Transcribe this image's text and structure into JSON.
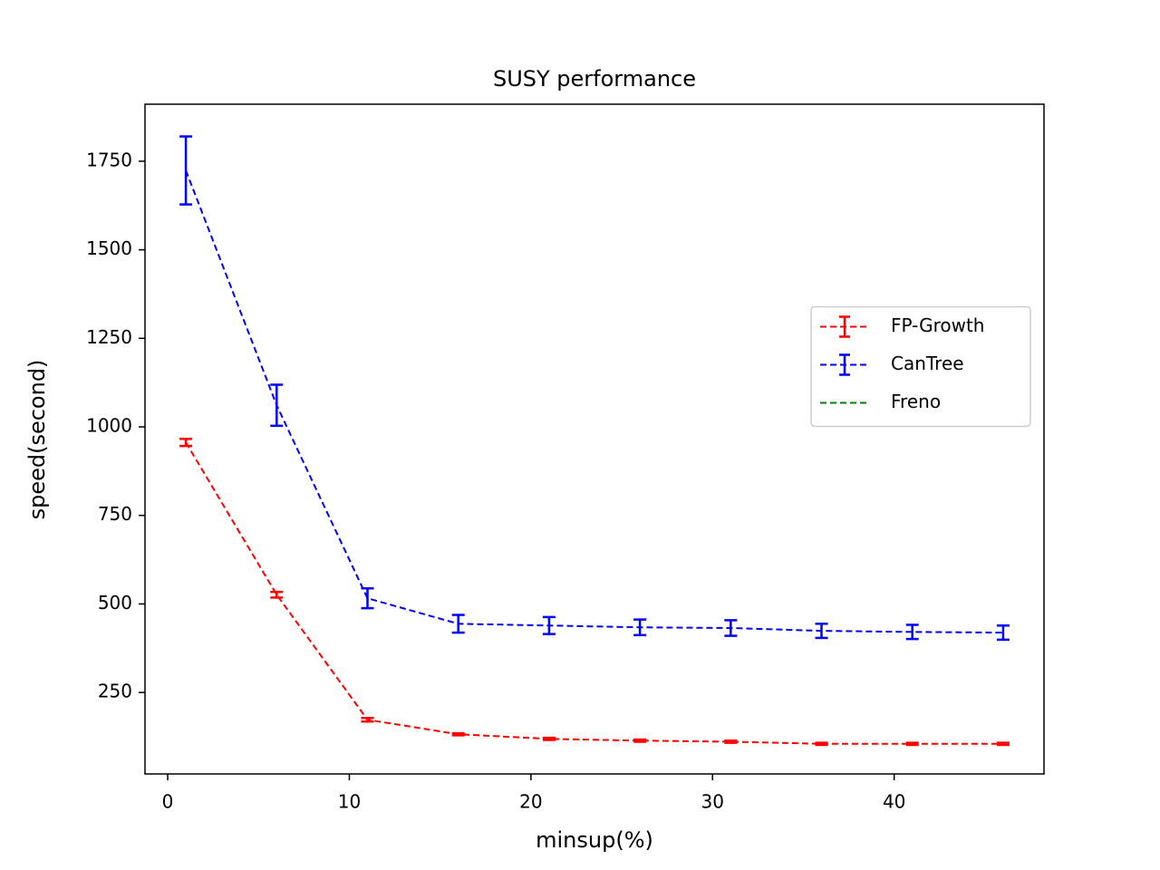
{
  "chart_data": {
    "type": "line",
    "title": "SUSY performance",
    "x_label": "minsup(%)",
    "y_label": "speed(second)",
    "x": [
      1,
      6,
      11,
      16,
      21,
      26,
      31,
      36,
      41,
      46
    ],
    "series": [
      {
        "name": "FP-Growth",
        "color": "#ff0000",
        "linestyle": "dashed",
        "values": [
          956,
          526,
          173,
          132,
          119,
          114,
          111,
          105,
          105,
          105
        ],
        "errors": [
          10,
          8,
          5,
          3,
          3,
          3,
          3,
          3,
          3,
          3
        ]
      },
      {
        "name": "CanTree",
        "color": "#0000ff",
        "linestyle": "dashed",
        "values": [
          1724,
          1061,
          516,
          444,
          439,
          434,
          432,
          424,
          421,
          419
        ],
        "errors": [
          96,
          58,
          28,
          25,
          24,
          22,
          22,
          20,
          20,
          20
        ]
      },
      {
        "name": "Freno",
        "color": "#008000",
        "linestyle": "dashed",
        "values": [
          null,
          null,
          null,
          null,
          null,
          null,
          null,
          null,
          null,
          null
        ]
      }
    ],
    "xlim": [
      -1.25,
      48.25
    ],
    "ylim": [
      20,
      1911
    ],
    "xticks": [
      0,
      10,
      20,
      30,
      40
    ],
    "yticks": [
      250,
      500,
      750,
      1000,
      1250,
      1500,
      1750
    ],
    "grid": false,
    "legend": "center right"
  }
}
